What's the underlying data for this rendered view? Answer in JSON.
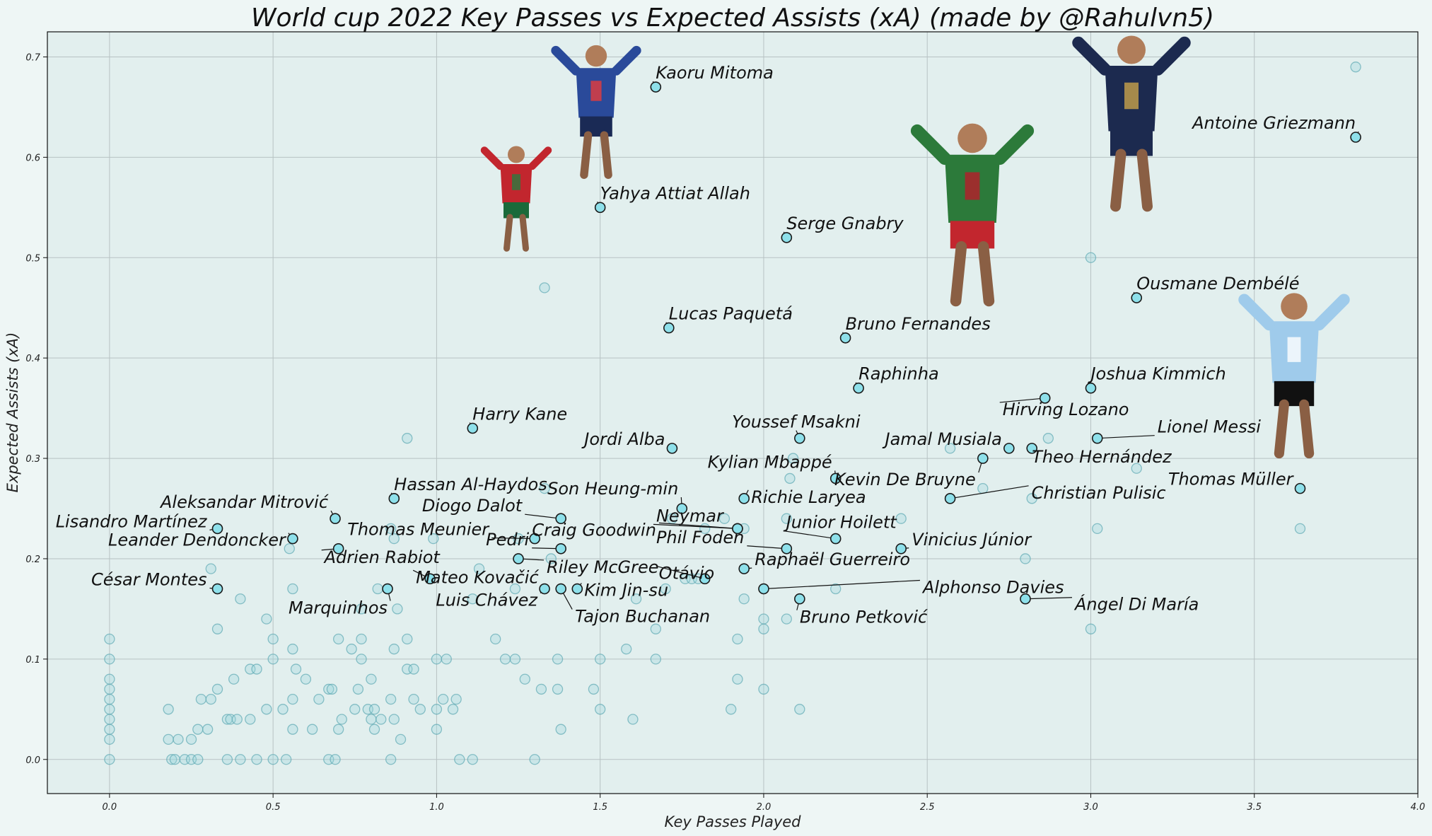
{
  "chart_data": {
    "type": "scatter",
    "title": "World cup 2022 Key Passes vs Expected Assists (xA) (made by @Rahulvn5)",
    "xlabel": "Key Passes Played",
    "ylabel": "Expected Assists (xA)",
    "xlim": [
      -0.19,
      4.0
    ],
    "ylim": [
      -0.034,
      0.725
    ],
    "xticks": [
      "0.0",
      "0.5",
      "1.0",
      "1.5",
      "2.0",
      "2.5",
      "3.0",
      "3.5",
      "4.0"
    ],
    "xtick_values": [
      0,
      0.5,
      1,
      1.5,
      2,
      2.5,
      3,
      3.5,
      4
    ],
    "yticks": [
      "0.0",
      "0.1",
      "0.2",
      "0.3",
      "0.4",
      "0.5",
      "0.6",
      "0.7"
    ],
    "ytick_values": [
      0,
      0.1,
      0.2,
      0.3,
      0.4,
      0.5,
      0.6,
      0.7
    ],
    "grid": true,
    "colors": {
      "background": "#eef6f5",
      "plot_background": "#e2efee",
      "grid": "#b7c2c3",
      "marker_face": "#9fd8de",
      "highlight_face": "#8ee0ea",
      "marker_edge": "#1a1a1a"
    },
    "background_points": [
      [
        0,
        0
      ],
      [
        0,
        0.02
      ],
      [
        0,
        0.03
      ],
      [
        0,
        0.04
      ],
      [
        0,
        0.05
      ],
      [
        0,
        0.06
      ],
      [
        0,
        0.07
      ],
      [
        0,
        0.08
      ],
      [
        0,
        0.1
      ],
      [
        0,
        0.12
      ],
      [
        0.18,
        0.02
      ],
      [
        0.18,
        0.05
      ],
      [
        0.19,
        0
      ],
      [
        0.2,
        0
      ],
      [
        0.21,
        0.02
      ],
      [
        0.23,
        0
      ],
      [
        0.25,
        0.02
      ],
      [
        0.25,
        0
      ],
      [
        0.27,
        0
      ],
      [
        0.27,
        0.03
      ],
      [
        0.28,
        0.06
      ],
      [
        0.3,
        0.03
      ],
      [
        0.31,
        0.06
      ],
      [
        0.31,
        0.19
      ],
      [
        0.33,
        0.07
      ],
      [
        0.33,
        0.13
      ],
      [
        0.36,
        0
      ],
      [
        0.36,
        0.04
      ],
      [
        0.37,
        0.04
      ],
      [
        0.38,
        0.08
      ],
      [
        0.39,
        0.04
      ],
      [
        0.4,
        0
      ],
      [
        0.4,
        0.16
      ],
      [
        0.43,
        0.09
      ],
      [
        0.43,
        0.04
      ],
      [
        0.45,
        0.09
      ],
      [
        0.45,
        0
      ],
      [
        0.48,
        0.05
      ],
      [
        0.48,
        0.14
      ],
      [
        0.5,
        0
      ],
      [
        0.5,
        0.12
      ],
      [
        0.5,
        0.1
      ],
      [
        0.53,
        0.05
      ],
      [
        0.54,
        0
      ],
      [
        0.55,
        0.21
      ],
      [
        0.56,
        0.03
      ],
      [
        0.56,
        0.06
      ],
      [
        0.56,
        0.11
      ],
      [
        0.56,
        0.17
      ],
      [
        0.57,
        0.09
      ],
      [
        0.6,
        0.08
      ],
      [
        0.62,
        0.03
      ],
      [
        0.64,
        0.06
      ],
      [
        0.67,
        0
      ],
      [
        0.67,
        0.07
      ],
      [
        0.68,
        0.07
      ],
      [
        0.69,
        0
      ],
      [
        0.7,
        0.03
      ],
      [
        0.7,
        0.12
      ],
      [
        0.71,
        0.04
      ],
      [
        0.74,
        0.11
      ],
      [
        0.75,
        0.05
      ],
      [
        0.76,
        0.07
      ],
      [
        0.77,
        0.15
      ],
      [
        0.77,
        0.1
      ],
      [
        0.77,
        0.12
      ],
      [
        0.79,
        0.05
      ],
      [
        0.8,
        0.08
      ],
      [
        0.8,
        0.04
      ],
      [
        0.81,
        0.05
      ],
      [
        0.81,
        0.03
      ],
      [
        0.82,
        0.17
      ],
      [
        0.83,
        0.04
      ],
      [
        0.86,
        0
      ],
      [
        0.86,
        0.06
      ],
      [
        0.86,
        0.23
      ],
      [
        0.87,
        0.22
      ],
      [
        0.87,
        0.11
      ],
      [
        0.87,
        0.04
      ],
      [
        0.88,
        0.15
      ],
      [
        0.89,
        0.02
      ],
      [
        0.91,
        0.12
      ],
      [
        0.91,
        0.32
      ],
      [
        0.91,
        0.09
      ],
      [
        0.93,
        0.09
      ],
      [
        0.93,
        0.06
      ],
      [
        0.95,
        0.05
      ],
      [
        0.99,
        0.22
      ],
      [
        1,
        0.1
      ],
      [
        1,
        0.03
      ],
      [
        1.0,
        0.05
      ],
      [
        1.02,
        0.06
      ],
      [
        1.03,
        0.1
      ],
      [
        1.05,
        0.05
      ],
      [
        1.06,
        0.06
      ],
      [
        1.07,
        0
      ],
      [
        1.11,
        0
      ],
      [
        1.11,
        0.16
      ],
      [
        1.13,
        0.19
      ],
      [
        1.18,
        0.12
      ],
      [
        1.21,
        0.1
      ],
      [
        1.24,
        0.1
      ],
      [
        1.24,
        0.17
      ],
      [
        1.25,
        0.22
      ],
      [
        1.27,
        0.08
      ],
      [
        1.3,
        0
      ],
      [
        1.32,
        0.07
      ],
      [
        1.33,
        0.27
      ],
      [
        1.33,
        0.47
      ],
      [
        1.35,
        0.2
      ],
      [
        1.37,
        0.07
      ],
      [
        1.37,
        0.1
      ],
      [
        1.38,
        0.03
      ],
      [
        1.48,
        0.07
      ],
      [
        1.5,
        0.1
      ],
      [
        1.5,
        0.05
      ],
      [
        1.58,
        0.11
      ],
      [
        1.6,
        0.04
      ],
      [
        1.61,
        0.16
      ],
      [
        1.67,
        0.13
      ],
      [
        1.67,
        0.1
      ],
      [
        1.7,
        0.17
      ],
      [
        1.72,
        0.24
      ],
      [
        1.76,
        0.18
      ],
      [
        1.78,
        0.18
      ],
      [
        1.8,
        0.18
      ],
      [
        1.82,
        0.23
      ],
      [
        1.88,
        0.24
      ],
      [
        1.9,
        0.05
      ],
      [
        1.92,
        0.12
      ],
      [
        1.92,
        0.08
      ],
      [
        1.94,
        0.23
      ],
      [
        1.94,
        0.16
      ],
      [
        2,
        0.14
      ],
      [
        2,
        0.13
      ],
      [
        2,
        0.07
      ],
      [
        2.07,
        0.24
      ],
      [
        2.07,
        0.14
      ],
      [
        2.08,
        0.28
      ],
      [
        2.11,
        0.05
      ],
      [
        2.09,
        0.3
      ],
      [
        2.22,
        0.17
      ],
      [
        2.42,
        0.24
      ],
      [
        2.57,
        0.31
      ],
      [
        2.67,
        0.27
      ],
      [
        2.8,
        0.2
      ],
      [
        2.82,
        0.26
      ],
      [
        2.87,
        0.32
      ],
      [
        3,
        0.5
      ],
      [
        3,
        0.13
      ],
      [
        3.02,
        0.23
      ],
      [
        3.14,
        0.29
      ],
      [
        3.64,
        0.23
      ],
      [
        3.81,
        0.69
      ]
    ],
    "labeled_points": [
      {
        "name": "Kaoru Mitoma",
        "x": 1.67,
        "y": 0.67
      },
      {
        "name": "Yahya Attiat Allah",
        "x": 1.5,
        "y": 0.55
      },
      {
        "name": "Serge Gnabry",
        "x": 2.07,
        "y": 0.52
      },
      {
        "name": "Antoine Griezmann",
        "x": 3.81,
        "y": 0.62
      },
      {
        "name": "Ousmane Dembélé",
        "x": 3.14,
        "y": 0.46
      },
      {
        "name": "Lucas Paquetá",
        "x": 1.71,
        "y": 0.43
      },
      {
        "name": "Bruno Fernandes",
        "x": 2.25,
        "y": 0.42
      },
      {
        "name": "Raphinha",
        "x": 2.29,
        "y": 0.37
      },
      {
        "name": "Joshua Kimmich",
        "x": 3.0,
        "y": 0.37
      },
      {
        "name": "Hirving Lozano",
        "x": 2.86,
        "y": 0.36
      },
      {
        "name": "Harry Kane",
        "x": 1.11,
        "y": 0.33
      },
      {
        "name": "Jordi Alba",
        "x": 1.72,
        "y": 0.31
      },
      {
        "name": "Youssef Msakni",
        "x": 2.11,
        "y": 0.32
      },
      {
        "name": "Jamal Musiala",
        "x": 2.75,
        "y": 0.31
      },
      {
        "name": "Lionel Messi",
        "x": 3.02,
        "y": 0.32
      },
      {
        "name": "Theo Hernández",
        "x": 2.82,
        "y": 0.31
      },
      {
        "name": "Kylian Mbappé",
        "x": 2.22,
        "y": 0.28
      },
      {
        "name": "Kevin De Bruyne",
        "x": 2.67,
        "y": 0.3
      },
      {
        "name": "Thomas Müller",
        "x": 3.64,
        "y": 0.27
      },
      {
        "name": "Hassan Al-Haydos",
        "x": 0.87,
        "y": 0.26
      },
      {
        "name": "Son Heung-min",
        "x": 1.75,
        "y": 0.25
      },
      {
        "name": "Richie Laryea",
        "x": 1.94,
        "y": 0.26
      },
      {
        "name": "Christian Pulisic",
        "x": 2.57,
        "y": 0.26
      },
      {
        "name": "Aleksandar Mitrović",
        "x": 0.69,
        "y": 0.24
      },
      {
        "name": "Diogo Dalot",
        "x": 1.38,
        "y": 0.24
      },
      {
        "name": "Lisandro Martínez",
        "x": 0.33,
        "y": 0.23
      },
      {
        "name": "Thomas Meunier",
        "x": 1.3,
        "y": 0.22
      },
      {
        "name": "Craig Goodwin",
        "x": 1.92,
        "y": 0.23
      },
      {
        "name": "Neymar",
        "x": 1.92,
        "y": 0.23
      },
      {
        "name": "Junior Hoilett",
        "x": 2.22,
        "y": 0.22
      },
      {
        "name": "Leander Dendoncker",
        "x": 0.56,
        "y": 0.22
      },
      {
        "name": "Phil Foden",
        "x": 2.07,
        "y": 0.21
      },
      {
        "name": "Vinicius Júnior",
        "x": 2.42,
        "y": 0.21
      },
      {
        "name": "Pedri",
        "x": 1.38,
        "y": 0.21
      },
      {
        "name": "Adrien Rabiot",
        "x": 0.7,
        "y": 0.21
      },
      {
        "name": "Riley McGree",
        "x": 1.25,
        "y": 0.2
      },
      {
        "name": "Raphaël Guerreiro",
        "x": 1.94,
        "y": 0.19
      },
      {
        "name": "Mateo Kovačić",
        "x": 0.98,
        "y": 0.18
      },
      {
        "name": "Otávio",
        "x": 1.82,
        "y": 0.18
      },
      {
        "name": "César Montes",
        "x": 0.33,
        "y": 0.17
      },
      {
        "name": "Marquinhos",
        "x": 0.85,
        "y": 0.17
      },
      {
        "name": "Luis Chávez",
        "x": 1.33,
        "y": 0.17
      },
      {
        "name": "Kim Jin-su",
        "x": 1.43,
        "y": 0.17
      },
      {
        "name": "Alphonso Davies",
        "x": 2.0,
        "y": 0.17
      },
      {
        "name": "Tajon Buchanan",
        "x": 1.38,
        "y": 0.17
      },
      {
        "name": "Bruno Petković",
        "x": 2.11,
        "y": 0.16
      },
      {
        "name": "Ángel Di María",
        "x": 2.8,
        "y": 0.16
      }
    ]
  }
}
